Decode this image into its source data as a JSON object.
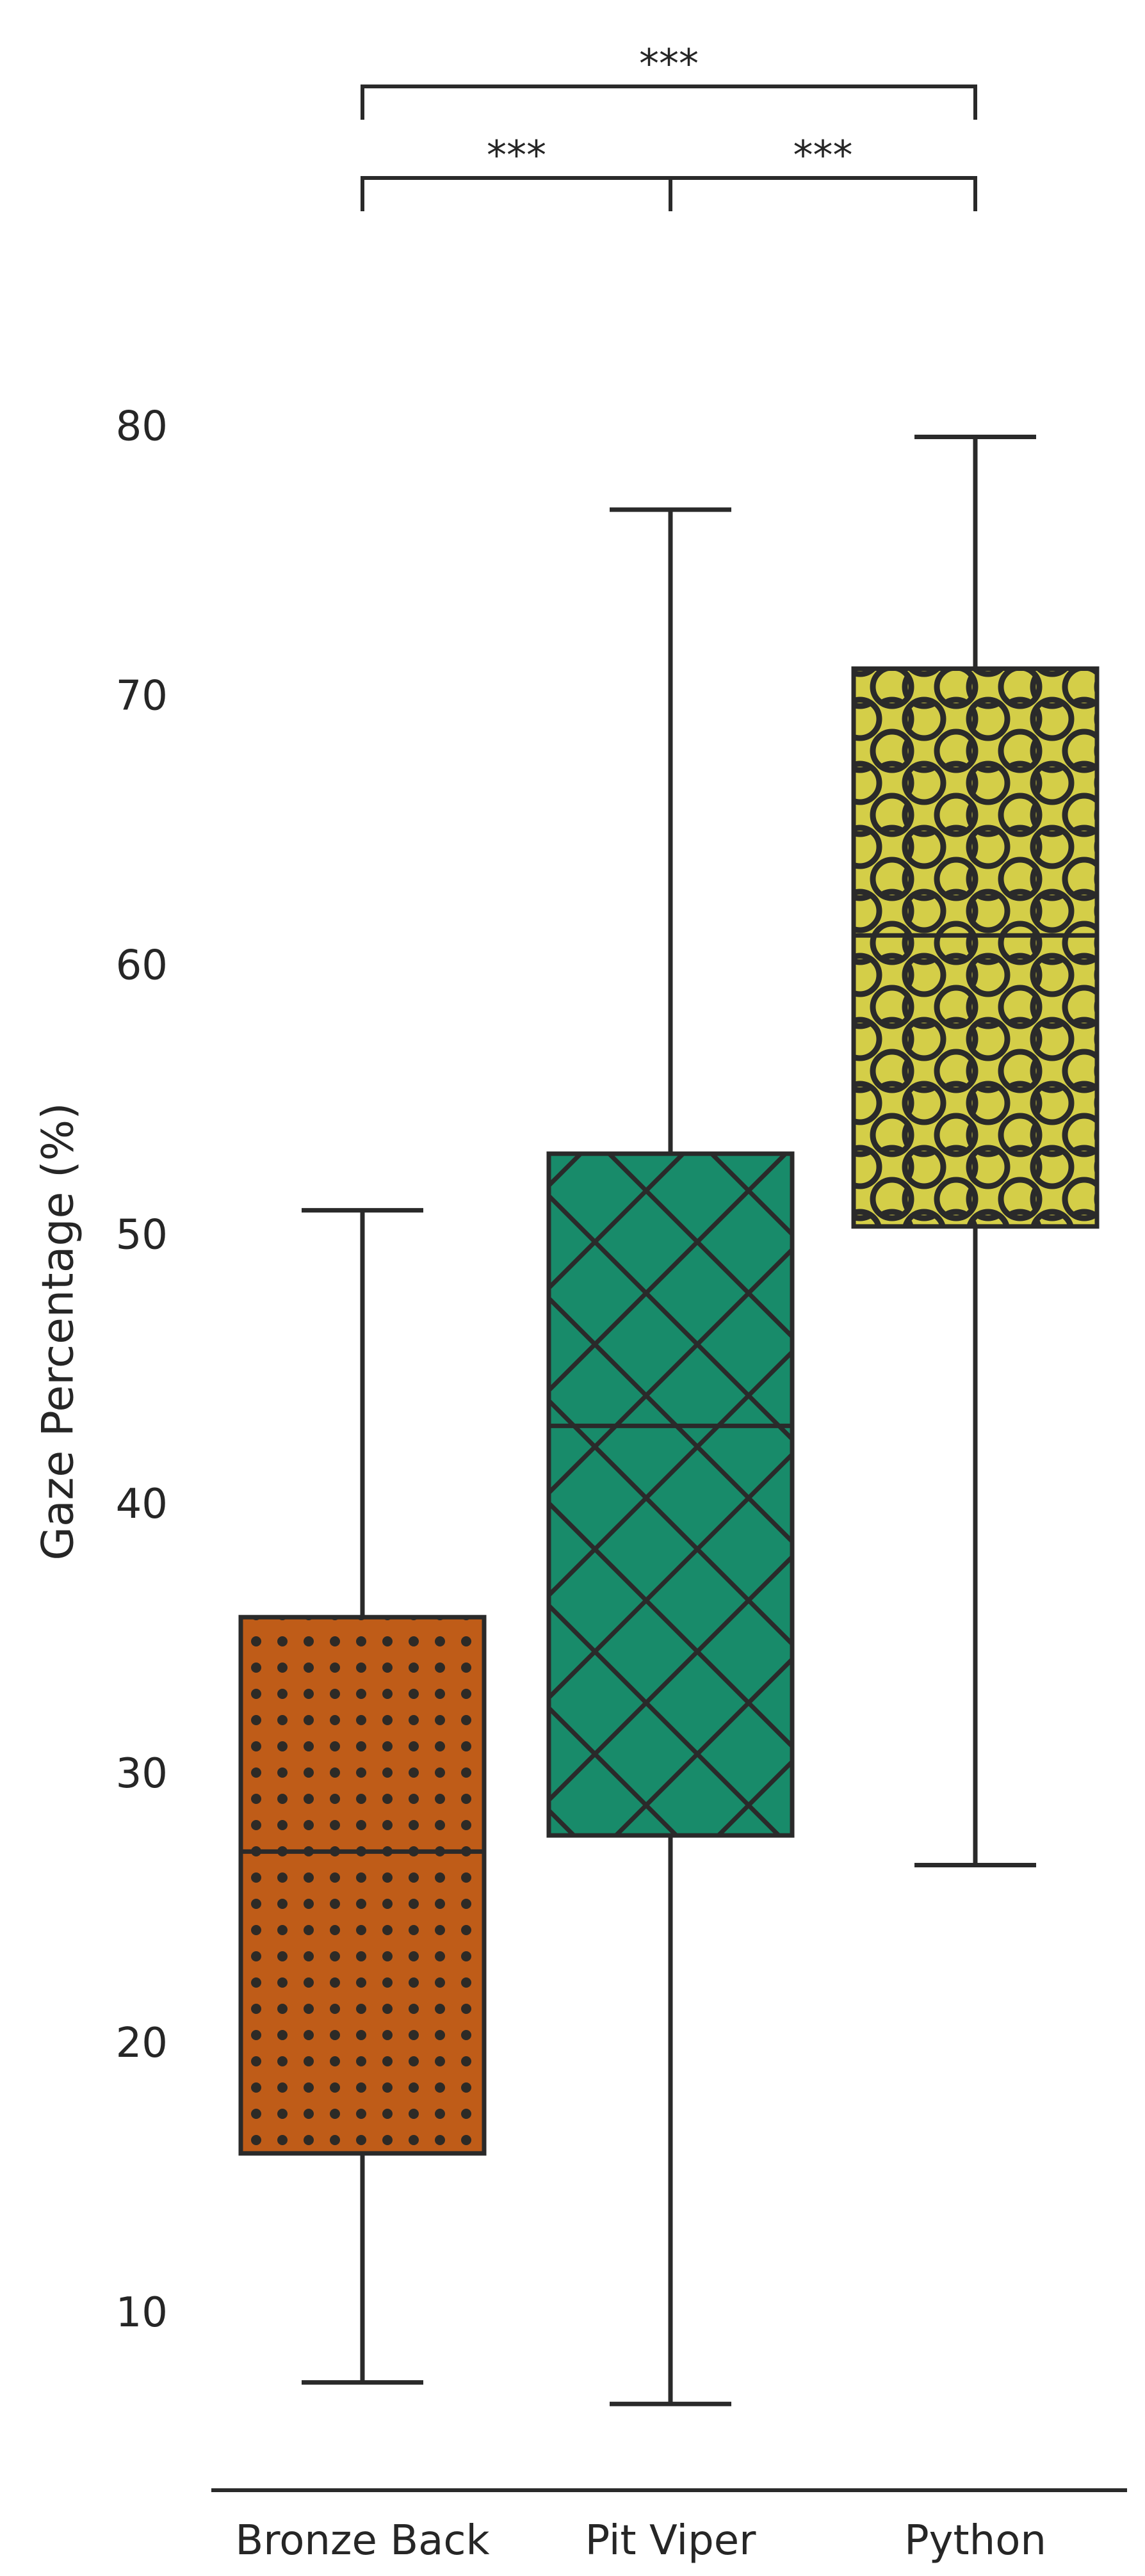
{
  "chart_data": {
    "type": "box",
    "title": "",
    "xlabel": "",
    "ylabel": "Gaze Percentage (%)",
    "ylim": [
      3.5,
      89.5
    ],
    "yticks": [
      10,
      20,
      30,
      40,
      50,
      60,
      70,
      80
    ],
    "grid": false,
    "categories": [
      "Bronze Back",
      "Pit Viper",
      "Python"
    ],
    "boxes": [
      {
        "category": "Bronze Back",
        "whisker_low": 7.5,
        "q1": 16.0,
        "median": 27.2,
        "q3": 35.9,
        "whisker_high": 51.0,
        "color": "#bf5c18",
        "pattern": "dots"
      },
      {
        "category": "Pit Viper",
        "whisker_low": 6.7,
        "q1": 27.8,
        "median": 43.0,
        "q3": 53.1,
        "whisker_high": 77.0,
        "color": "#188b6a",
        "pattern": "crosshatch"
      },
      {
        "category": "Python",
        "whisker_low": 26.7,
        "q1": 50.4,
        "median": 61.2,
        "q3": 71.1,
        "whisker_high": 79.7,
        "color": "#d4ce48",
        "pattern": "circles"
      }
    ],
    "significance": [
      {
        "from": 0,
        "to": 2,
        "label": "***",
        "level": 2
      },
      {
        "from": 0,
        "to": 1,
        "label": "***",
        "level": 1
      },
      {
        "from": 1,
        "to": 2,
        "label": "***",
        "level": 1
      }
    ]
  }
}
